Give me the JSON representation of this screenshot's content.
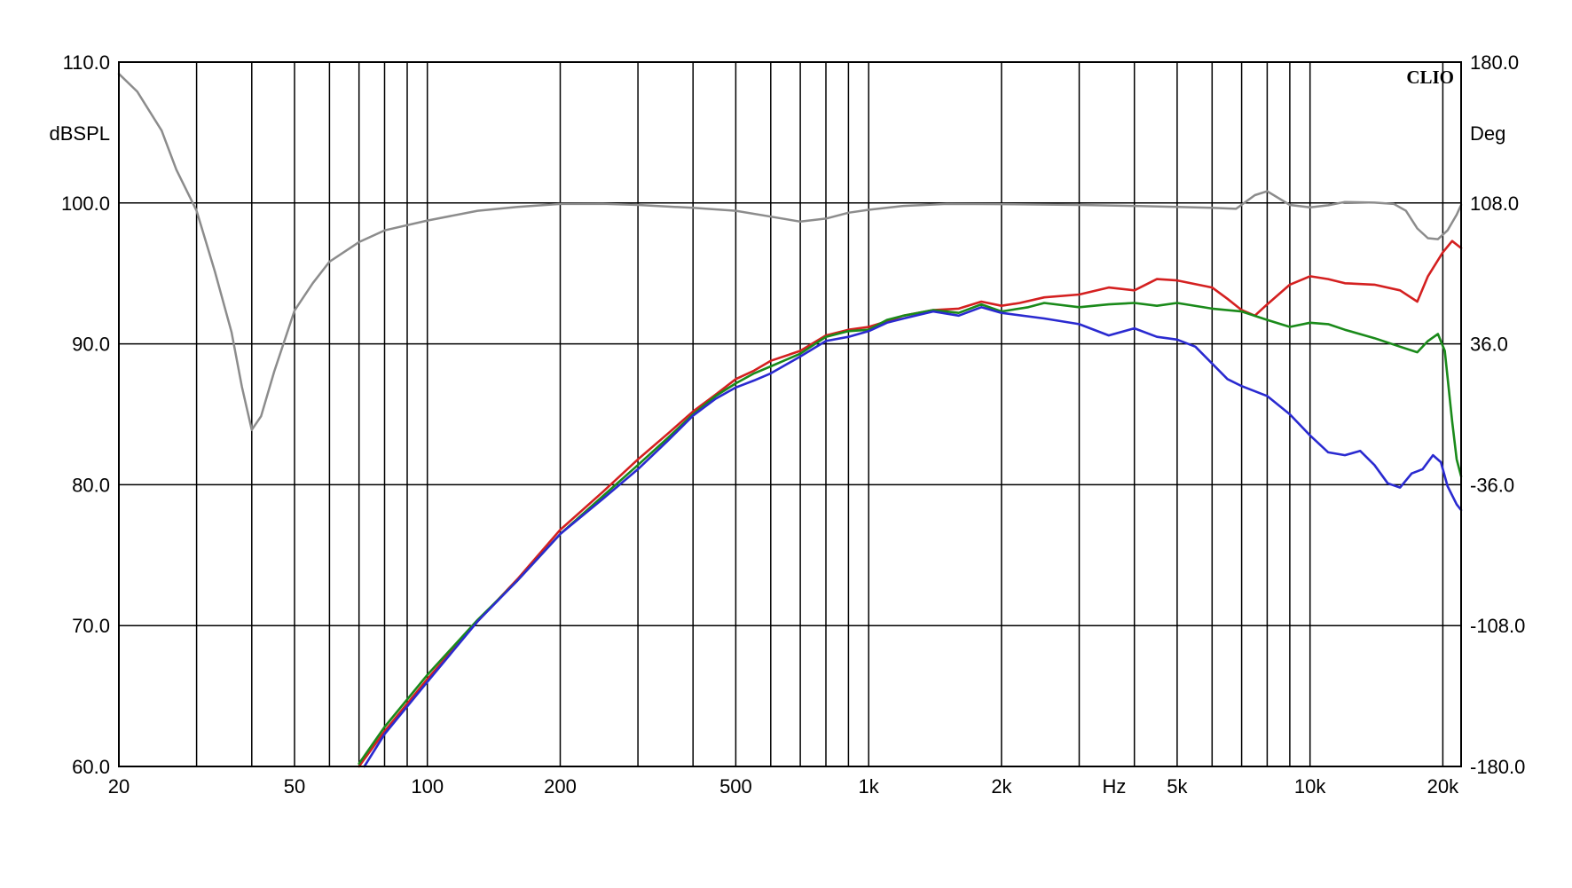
{
  "chart_data": {
    "type": "line",
    "x_scale": "log",
    "xlim": [
      20,
      22000
    ],
    "ylim": [
      60,
      110
    ],
    "y2lim": [
      -180,
      180
    ],
    "grid": true,
    "legend": "none",
    "brand": "CLIO",
    "xlabel": "Hz",
    "ylabel": "dBSPL",
    "y2label": "Deg",
    "x_ticks": [
      {
        "value": 20,
        "label": "20"
      },
      {
        "value": 50,
        "label": "50"
      },
      {
        "value": 100,
        "label": "100"
      },
      {
        "value": 200,
        "label": "200"
      },
      {
        "value": 500,
        "label": "500"
      },
      {
        "value": 1000,
        "label": "1k"
      },
      {
        "value": 2000,
        "label": "2k"
      },
      {
        "value": 5000,
        "label": "5k"
      },
      {
        "value": 10000,
        "label": "10k"
      },
      {
        "value": 20000,
        "label": "20k"
      }
    ],
    "y_ticks": [
      {
        "value": 110,
        "label": "110.0"
      },
      {
        "value": 100,
        "label": "100.0"
      },
      {
        "value": 90,
        "label": "90.0"
      },
      {
        "value": 80,
        "label": "80.0"
      },
      {
        "value": 70,
        "label": "70.0"
      },
      {
        "value": 60,
        "label": "60.0"
      }
    ],
    "y2_ticks": [
      {
        "value": 180,
        "label": "180.0"
      },
      {
        "value": 108,
        "label": "108.0"
      },
      {
        "value": 36,
        "label": "36.0"
      },
      {
        "value": -36,
        "label": "-36.0"
      },
      {
        "value": -108,
        "label": "-108.0"
      },
      {
        "value": -180,
        "label": "-180.0"
      }
    ],
    "vgrid_freqs": [
      30,
      40,
      50,
      60,
      70,
      80,
      90,
      100,
      200,
      300,
      400,
      500,
      600,
      700,
      800,
      900,
      1000,
      2000,
      3000,
      4000,
      5000,
      6000,
      7000,
      8000,
      9000,
      10000,
      20000
    ],
    "series": [
      {
        "color": "#d42020",
        "points": [
          [
            70,
            60
          ],
          [
            80,
            62.5
          ],
          [
            100,
            66.2
          ],
          [
            130,
            70.3
          ],
          [
            160,
            73.3
          ],
          [
            200,
            76.8
          ],
          [
            250,
            79.5
          ],
          [
            300,
            81.8
          ],
          [
            350,
            83.6
          ],
          [
            400,
            85.2
          ],
          [
            450,
            86.4
          ],
          [
            500,
            87.5
          ],
          [
            550,
            88.1
          ],
          [
            600,
            88.8
          ],
          [
            700,
            89.5
          ],
          [
            800,
            90.6
          ],
          [
            900,
            91.0
          ],
          [
            1000,
            91.2
          ],
          [
            1100,
            91.6
          ],
          [
            1200,
            92.0
          ],
          [
            1400,
            92.4
          ],
          [
            1600,
            92.5
          ],
          [
            1800,
            93.0
          ],
          [
            2000,
            92.7
          ],
          [
            2200,
            92.9
          ],
          [
            2500,
            93.3
          ],
          [
            3000,
            93.5
          ],
          [
            3500,
            94.0
          ],
          [
            4000,
            93.8
          ],
          [
            4500,
            94.6
          ],
          [
            5000,
            94.5
          ],
          [
            6000,
            94.0
          ],
          [
            6500,
            93.2
          ],
          [
            7000,
            92.4
          ],
          [
            7500,
            92.0
          ],
          [
            8000,
            92.8
          ],
          [
            9000,
            94.2
          ],
          [
            10000,
            94.8
          ],
          [
            11000,
            94.6
          ],
          [
            12000,
            94.3
          ],
          [
            14000,
            94.2
          ],
          [
            16000,
            93.8
          ],
          [
            17500,
            93.0
          ],
          [
            18500,
            94.8
          ],
          [
            20000,
            96.5
          ],
          [
            21000,
            97.3
          ],
          [
            22000,
            96.8
          ]
        ]
      },
      {
        "color": "#1a8a1a",
        "points": [
          [
            70,
            60.2
          ],
          [
            80,
            62.8
          ],
          [
            100,
            66.5
          ],
          [
            130,
            70.4
          ],
          [
            160,
            73.2
          ],
          [
            200,
            76.5
          ],
          [
            250,
            79.2
          ],
          [
            300,
            81.4
          ],
          [
            350,
            83.3
          ],
          [
            400,
            85.0
          ],
          [
            450,
            86.3
          ],
          [
            500,
            87.2
          ],
          [
            550,
            87.9
          ],
          [
            600,
            88.4
          ],
          [
            700,
            89.3
          ],
          [
            800,
            90.5
          ],
          [
            900,
            90.9
          ],
          [
            1000,
            91.0
          ],
          [
            1100,
            91.7
          ],
          [
            1200,
            92.0
          ],
          [
            1400,
            92.4
          ],
          [
            1600,
            92.2
          ],
          [
            1800,
            92.8
          ],
          [
            2000,
            92.3
          ],
          [
            2300,
            92.6
          ],
          [
            2500,
            92.9
          ],
          [
            3000,
            92.6
          ],
          [
            3500,
            92.8
          ],
          [
            4000,
            92.9
          ],
          [
            4500,
            92.7
          ],
          [
            5000,
            92.9
          ],
          [
            6000,
            92.5
          ],
          [
            7000,
            92.3
          ],
          [
            8000,
            91.7
          ],
          [
            9000,
            91.2
          ],
          [
            10000,
            91.5
          ],
          [
            11000,
            91.4
          ],
          [
            12000,
            91.0
          ],
          [
            14000,
            90.4
          ],
          [
            16000,
            89.8
          ],
          [
            17500,
            89.4
          ],
          [
            18500,
            90.2
          ],
          [
            19500,
            90.7
          ],
          [
            20200,
            89.5
          ],
          [
            21000,
            84.5
          ],
          [
            21500,
            81.8
          ],
          [
            22000,
            80.6
          ]
        ]
      },
      {
        "color": "#2a2ad0",
        "points": [
          [
            72,
            60
          ],
          [
            80,
            62.3
          ],
          [
            100,
            66.0
          ],
          [
            130,
            70.3
          ],
          [
            160,
            73.2
          ],
          [
            200,
            76.5
          ],
          [
            250,
            79.0
          ],
          [
            300,
            81.1
          ],
          [
            350,
            83.1
          ],
          [
            400,
            84.9
          ],
          [
            450,
            86.1
          ],
          [
            500,
            86.9
          ],
          [
            550,
            87.4
          ],
          [
            600,
            87.9
          ],
          [
            700,
            89.1
          ],
          [
            800,
            90.2
          ],
          [
            900,
            90.5
          ],
          [
            1000,
            90.9
          ],
          [
            1100,
            91.5
          ],
          [
            1200,
            91.8
          ],
          [
            1400,
            92.3
          ],
          [
            1600,
            92.0
          ],
          [
            1800,
            92.6
          ],
          [
            2000,
            92.2
          ],
          [
            2500,
            91.8
          ],
          [
            3000,
            91.4
          ],
          [
            3500,
            90.6
          ],
          [
            4000,
            91.1
          ],
          [
            4500,
            90.5
          ],
          [
            5000,
            90.3
          ],
          [
            5500,
            89.8
          ],
          [
            6000,
            88.6
          ],
          [
            6500,
            87.5
          ],
          [
            7000,
            87.0
          ],
          [
            8000,
            86.3
          ],
          [
            9000,
            85.0
          ],
          [
            10000,
            83.5
          ],
          [
            11000,
            82.3
          ],
          [
            12000,
            82.1
          ],
          [
            13000,
            82.4
          ],
          [
            14000,
            81.4
          ],
          [
            15000,
            80.1
          ],
          [
            16000,
            79.8
          ],
          [
            17000,
            80.8
          ],
          [
            18000,
            81.1
          ],
          [
            19000,
            82.1
          ],
          [
            19800,
            81.6
          ],
          [
            20500,
            79.9
          ],
          [
            21500,
            78.6
          ],
          [
            22000,
            78.2
          ]
        ]
      },
      {
        "color": "#8c8c8c",
        "axis": "right",
        "points": [
          [
            20,
            174
          ],
          [
            22,
            165
          ],
          [
            25,
            145
          ],
          [
            27,
            125
          ],
          [
            30,
            104
          ],
          [
            33,
            73
          ],
          [
            36,
            42
          ],
          [
            38,
            14
          ],
          [
            40,
            -8
          ],
          [
            42,
            -1
          ],
          [
            45,
            22
          ],
          [
            50,
            53
          ],
          [
            55,
            67
          ],
          [
            60,
            78
          ],
          [
            70,
            88
          ],
          [
            80,
            94
          ],
          [
            100,
            99
          ],
          [
            130,
            104
          ],
          [
            160,
            106
          ],
          [
            200,
            107.5
          ],
          [
            250,
            107.6
          ],
          [
            300,
            107
          ],
          [
            400,
            105.5
          ],
          [
            500,
            104
          ],
          [
            600,
            101
          ],
          [
            700,
            98.5
          ],
          [
            800,
            100
          ],
          [
            900,
            103
          ],
          [
            1000,
            104.5
          ],
          [
            1200,
            106.5
          ],
          [
            1500,
            107.5
          ],
          [
            2000,
            107.4
          ],
          [
            3000,
            107.0
          ],
          [
            4000,
            106.5
          ],
          [
            5000,
            106.0
          ],
          [
            6000,
            105.5
          ],
          [
            6800,
            105.0
          ],
          [
            7500,
            112
          ],
          [
            8000,
            114
          ],
          [
            9000,
            107
          ],
          [
            10000,
            105.8
          ],
          [
            11000,
            106.8
          ],
          [
            12000,
            108.5
          ],
          [
            14000,
            108.2
          ],
          [
            15500,
            107.5
          ],
          [
            16500,
            104
          ],
          [
            17500,
            95
          ],
          [
            18500,
            90
          ],
          [
            19500,
            89.5
          ],
          [
            20500,
            94
          ],
          [
            21500,
            102
          ],
          [
            22000,
            107
          ]
        ]
      }
    ]
  }
}
